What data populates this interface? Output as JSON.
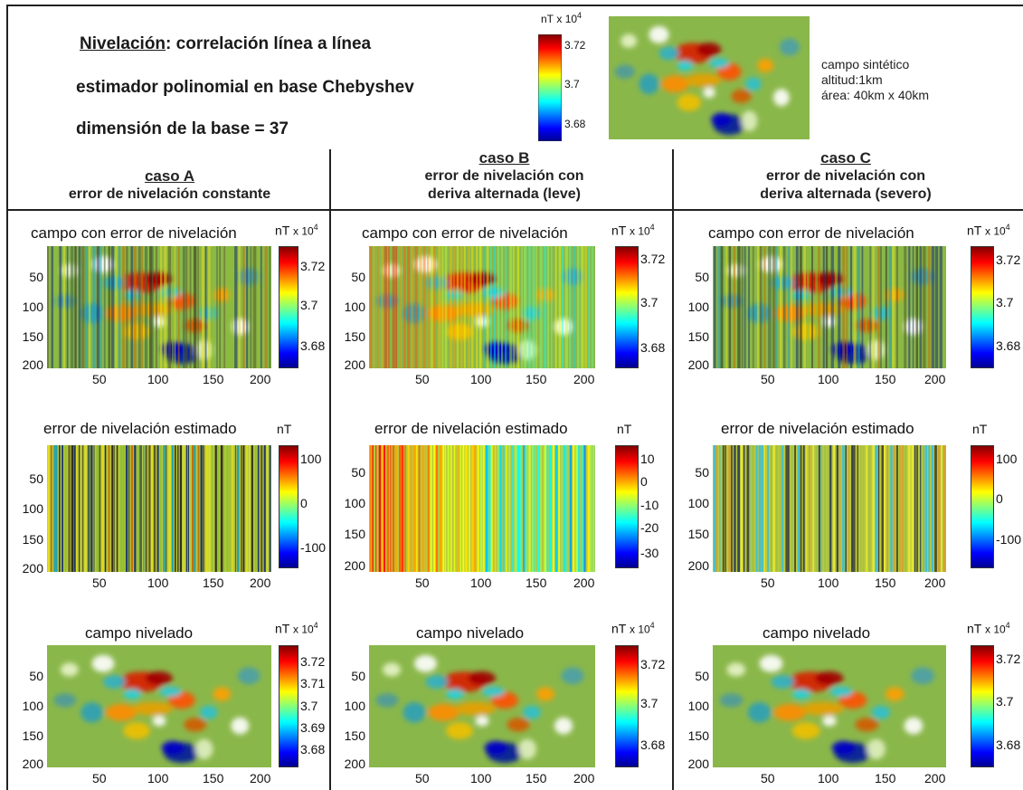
{
  "header": {
    "title_underlined": "Nivelación",
    "title_rest": ": correlación línea a línea",
    "line2": "estimador polinomial en base Chebyshev",
    "line3": "dimensión de la base = 37"
  },
  "synthetic": {
    "unit_label": "nT",
    "unit_scale": "x 10",
    "unit_exp": "4",
    "colorbar_ticks": [
      "3.72",
      "3.7",
      "3.68"
    ],
    "info_lines": [
      "campo sintético",
      "altitud:1km",
      "área: 40km x 40km"
    ]
  },
  "cases": [
    {
      "name": "caso A",
      "desc": [
        "error de nivelación constante"
      ]
    },
    {
      "name": "caso B",
      "desc": [
        "error de nivelación con",
        "deriva alternada (leve)"
      ]
    },
    {
      "name": "caso C",
      "desc": [
        "error de nivelación con",
        "deriva alternada (severo)"
      ]
    }
  ],
  "row_titles": [
    "campo con error de nivelación",
    "error de nivelación estimado",
    "campo nivelado"
  ],
  "axis_ticks": {
    "y": [
      "50",
      "100",
      "150",
      "200"
    ],
    "x_A": [
      "50",
      "100",
      "150",
      "200"
    ],
    "x_B": [
      "50",
      "100",
      "150",
      "200"
    ],
    "x_C": [
      "50",
      "100",
      "150",
      "200"
    ]
  },
  "units": {
    "nT": "nT",
    "scale": "x 10",
    "exp": "4"
  },
  "colorbars": {
    "A1": [
      "3.72",
      "3.7",
      "3.68"
    ],
    "A2": [
      "100",
      "0",
      "-100"
    ],
    "A3": [
      "3.72",
      "3.71",
      "3.7",
      "3.69",
      "3.68"
    ],
    "B1": [
      "3.72",
      "3.7",
      "3.68"
    ],
    "B2": [
      "10",
      "0",
      "-10",
      "-20",
      "-30"
    ],
    "B3": [
      "3.72",
      "3.7",
      "3.68"
    ],
    "C1": [
      "3.72",
      "3.7",
      "3.68"
    ],
    "C2": [
      "100",
      "0",
      "-100"
    ],
    "C3": [
      "3.72",
      "3.7",
      "3.68"
    ]
  },
  "colors": {
    "field_base": "#8ab74a",
    "jet": [
      "#00008f",
      "#0000ff",
      "#00ffff",
      "#ffff00",
      "#ff0000",
      "#800000"
    ]
  }
}
